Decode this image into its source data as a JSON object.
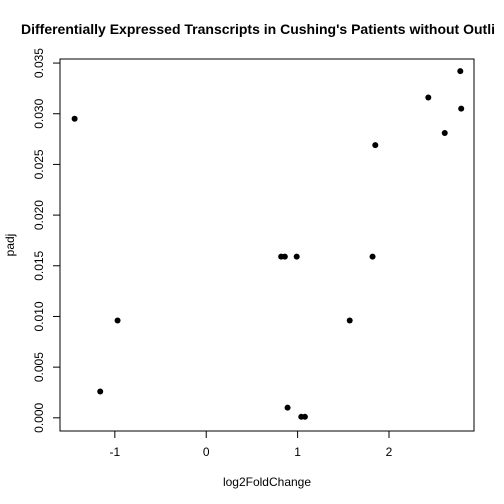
{
  "chart_data": {
    "type": "scatter",
    "title": "Differentially Expressed Transcripts in Cushing's Patients without Outli",
    "xlabel": "log2FoldChange",
    "ylabel": "padj",
    "xlim": [
      -1.6,
      2.93
    ],
    "ylim": [
      -0.0013,
      0.0354
    ],
    "xticks": [
      -1,
      0,
      1,
      2
    ],
    "xtick_labels": [
      "-1",
      "0",
      "1",
      "2"
    ],
    "yticks": [
      0.0,
      0.005,
      0.01,
      0.015,
      0.02,
      0.025,
      0.03,
      0.035
    ],
    "ytick_labels": [
      "0.000",
      "0.005",
      "0.010",
      "0.015",
      "0.020",
      "0.025",
      "0.030",
      "0.035"
    ],
    "grid": false,
    "legend": "none",
    "point_color": "#000000",
    "points": [
      {
        "x": -1.44,
        "y": 0.0295
      },
      {
        "x": -1.16,
        "y": 0.0026
      },
      {
        "x": -0.97,
        "y": 0.0096
      },
      {
        "x": 0.82,
        "y": 0.0159
      },
      {
        "x": 0.86,
        "y": 0.0159
      },
      {
        "x": 0.89,
        "y": 0.001
      },
      {
        "x": 0.99,
        "y": 0.0159
      },
      {
        "x": 1.04,
        "y": 0.0001
      },
      {
        "x": 1.08,
        "y": 0.0001
      },
      {
        "x": 1.57,
        "y": 0.0096
      },
      {
        "x": 1.82,
        "y": 0.0159
      },
      {
        "x": 1.85,
        "y": 0.0269
      },
      {
        "x": 2.43,
        "y": 0.0316
      },
      {
        "x": 2.61,
        "y": 0.0281
      },
      {
        "x": 2.78,
        "y": 0.0342
      },
      {
        "x": 2.79,
        "y": 0.0305
      }
    ]
  }
}
